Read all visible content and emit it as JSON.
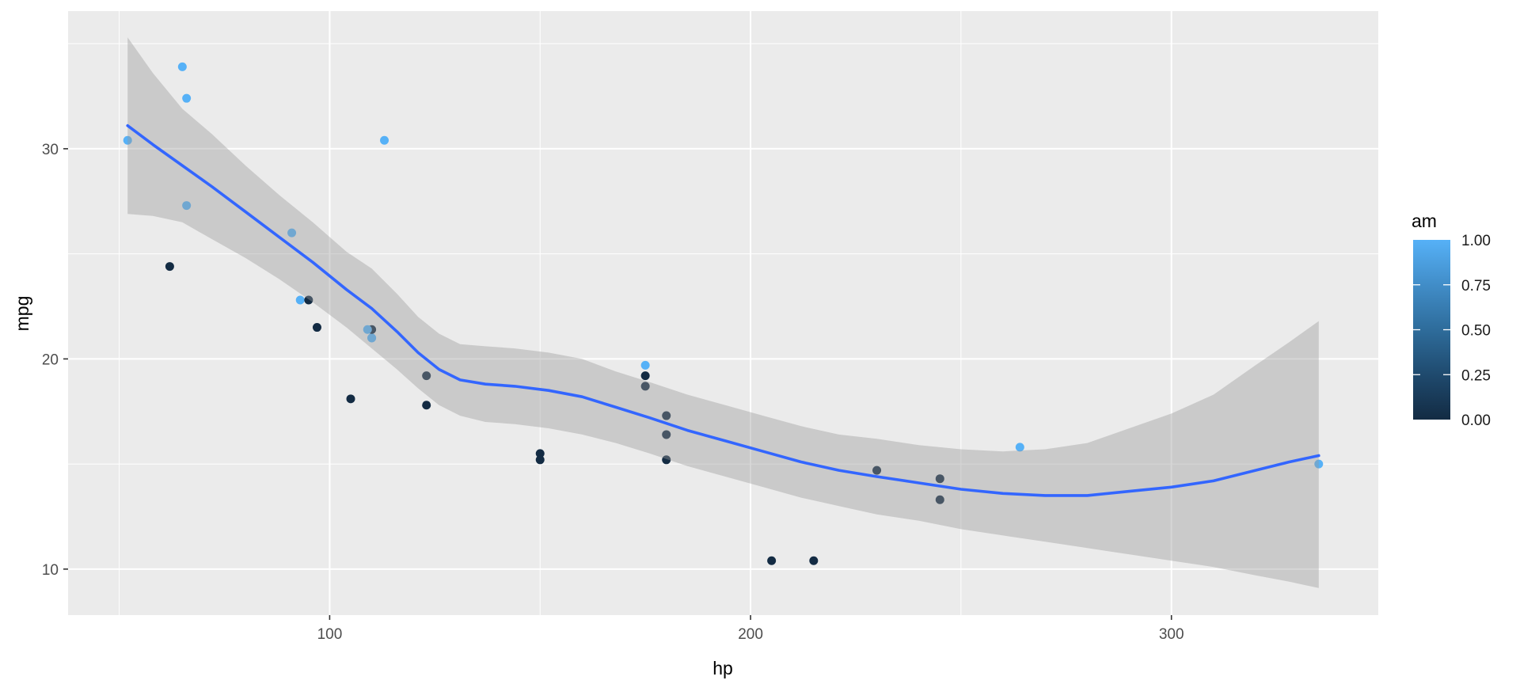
{
  "chart_data": {
    "type": "scatter",
    "title": "",
    "xlabel": "hp",
    "ylabel": "mpg",
    "x_range": [
      37.85,
      349.15
    ],
    "y_range": [
      7.81,
      36.55
    ],
    "x_ticks": [
      {
        "value": 100,
        "label": "100"
      },
      {
        "value": 200,
        "label": "200"
      },
      {
        "value": 300,
        "label": "300"
      }
    ],
    "x_minor_ticks": [
      50,
      150,
      250
    ],
    "y_ticks": [
      {
        "value": 10,
        "label": "10"
      },
      {
        "value": 20,
        "label": "20"
      },
      {
        "value": 30,
        "label": "30"
      }
    ],
    "y_minor_ticks": [
      15,
      25,
      35
    ],
    "grid": true,
    "legend": {
      "title": "am",
      "position": "right",
      "type": "colorbar",
      "tick_labels": [
        "1.00",
        "0.75",
        "0.50",
        "0.25",
        "0.00"
      ],
      "tick_values": [
        1.0,
        0.75,
        0.5,
        0.25,
        0.0
      ],
      "gradient_high": "#56B1F7",
      "gradient_mid_stops": [
        "#418DC8",
        "#2E6C9B",
        "#1F4A6E"
      ],
      "gradient_low": "#132B43"
    },
    "points": [
      {
        "hp": 110,
        "mpg": 21.0,
        "am": 1
      },
      {
        "hp": 110,
        "mpg": 21.0,
        "am": 1
      },
      {
        "hp": 93,
        "mpg": 22.8,
        "am": 1
      },
      {
        "hp": 110,
        "mpg": 21.4,
        "am": 0
      },
      {
        "hp": 175,
        "mpg": 18.7,
        "am": 0
      },
      {
        "hp": 105,
        "mpg": 18.1,
        "am": 0
      },
      {
        "hp": 245,
        "mpg": 14.3,
        "am": 0
      },
      {
        "hp": 62,
        "mpg": 24.4,
        "am": 0
      },
      {
        "hp": 95,
        "mpg": 22.8,
        "am": 0
      },
      {
        "hp": 123,
        "mpg": 19.2,
        "am": 0
      },
      {
        "hp": 123,
        "mpg": 17.8,
        "am": 0
      },
      {
        "hp": 180,
        "mpg": 16.4,
        "am": 0
      },
      {
        "hp": 180,
        "mpg": 17.3,
        "am": 0
      },
      {
        "hp": 180,
        "mpg": 15.2,
        "am": 0
      },
      {
        "hp": 205,
        "mpg": 10.4,
        "am": 0
      },
      {
        "hp": 215,
        "mpg": 10.4,
        "am": 0
      },
      {
        "hp": 230,
        "mpg": 14.7,
        "am": 0
      },
      {
        "hp": 66,
        "mpg": 32.4,
        "am": 1
      },
      {
        "hp": 52,
        "mpg": 30.4,
        "am": 1
      },
      {
        "hp": 65,
        "mpg": 33.9,
        "am": 1
      },
      {
        "hp": 97,
        "mpg": 21.5,
        "am": 0
      },
      {
        "hp": 150,
        "mpg": 15.5,
        "am": 0
      },
      {
        "hp": 150,
        "mpg": 15.2,
        "am": 0
      },
      {
        "hp": 245,
        "mpg": 13.3,
        "am": 0
      },
      {
        "hp": 175,
        "mpg": 19.2,
        "am": 0
      },
      {
        "hp": 66,
        "mpg": 27.3,
        "am": 1
      },
      {
        "hp": 91,
        "mpg": 26.0,
        "am": 1
      },
      {
        "hp": 113,
        "mpg": 30.4,
        "am": 1
      },
      {
        "hp": 264,
        "mpg": 15.8,
        "am": 1
      },
      {
        "hp": 175,
        "mpg": 19.7,
        "am": 1
      },
      {
        "hp": 335,
        "mpg": 15.0,
        "am": 1
      },
      {
        "hp": 109,
        "mpg": 21.4,
        "am": 1
      }
    ],
    "smooth_line": {
      "color": "#3366FF",
      "points": [
        [
          52,
          31.1
        ],
        [
          58,
          30.2
        ],
        [
          65,
          29.2
        ],
        [
          72,
          28.2
        ],
        [
          80,
          27.0
        ],
        [
          88,
          25.8
        ],
        [
          96,
          24.6
        ],
        [
          104,
          23.3
        ],
        [
          110,
          22.4
        ],
        [
          116,
          21.3
        ],
        [
          121,
          20.3
        ],
        [
          126,
          19.5
        ],
        [
          131,
          19.0
        ],
        [
          137,
          18.8
        ],
        [
          144,
          18.7
        ],
        [
          152,
          18.5
        ],
        [
          160,
          18.2
        ],
        [
          168,
          17.7
        ],
        [
          176,
          17.2
        ],
        [
          185,
          16.6
        ],
        [
          194,
          16.1
        ],
        [
          203,
          15.6
        ],
        [
          212,
          15.1
        ],
        [
          221,
          14.7
        ],
        [
          230,
          14.4
        ],
        [
          240,
          14.1
        ],
        [
          250,
          13.8
        ],
        [
          260,
          13.6
        ],
        [
          270,
          13.5
        ],
        [
          280,
          13.5
        ],
        [
          290,
          13.7
        ],
        [
          300,
          13.9
        ],
        [
          310,
          14.2
        ],
        [
          320,
          14.7
        ],
        [
          328,
          15.1
        ],
        [
          335,
          15.4
        ]
      ]
    },
    "confidence_ribbon": {
      "fill": "#999999",
      "opacity": 0.4,
      "points": [
        [
          52,
          26.9,
          35.3
        ],
        [
          58,
          26.8,
          33.6
        ],
        [
          65,
          26.5,
          31.9
        ],
        [
          72,
          25.7,
          30.7
        ],
        [
          80,
          24.8,
          29.2
        ],
        [
          88,
          23.8,
          27.8
        ],
        [
          96,
          22.7,
          26.5
        ],
        [
          104,
          21.5,
          25.1
        ],
        [
          110,
          20.5,
          24.3
        ],
        [
          116,
          19.5,
          23.1
        ],
        [
          121,
          18.6,
          22.0
        ],
        [
          126,
          17.8,
          21.2
        ],
        [
          131,
          17.3,
          20.7
        ],
        [
          137,
          17.0,
          20.6
        ],
        [
          144,
          16.9,
          20.5
        ],
        [
          152,
          16.7,
          20.3
        ],
        [
          160,
          16.4,
          20.0
        ],
        [
          168,
          16.0,
          19.4
        ],
        [
          176,
          15.5,
          18.9
        ],
        [
          185,
          14.9,
          18.3
        ],
        [
          194,
          14.4,
          17.8
        ],
        [
          203,
          13.9,
          17.3
        ],
        [
          212,
          13.4,
          16.8
        ],
        [
          221,
          13.0,
          16.4
        ],
        [
          230,
          12.6,
          16.2
        ],
        [
          240,
          12.3,
          15.9
        ],
        [
          250,
          11.9,
          15.7
        ],
        [
          260,
          11.6,
          15.6
        ],
        [
          270,
          11.3,
          15.7
        ],
        [
          280,
          11.0,
          16.0
        ],
        [
          290,
          10.7,
          16.7
        ],
        [
          300,
          10.4,
          17.4
        ],
        [
          310,
          10.1,
          18.3
        ],
        [
          320,
          9.7,
          19.7
        ],
        [
          328,
          9.4,
          20.8
        ],
        [
          335,
          9.1,
          21.8
        ]
      ]
    },
    "colors": {
      "point_am_1": "#56B1F7",
      "point_am_0": "#132B43",
      "panel_background": "#EBEBEB",
      "gridline": "#FFFFFF",
      "tick_mark": "#333333",
      "tick_text": "#4D4D4D",
      "smooth_line": "#3366FF"
    }
  }
}
